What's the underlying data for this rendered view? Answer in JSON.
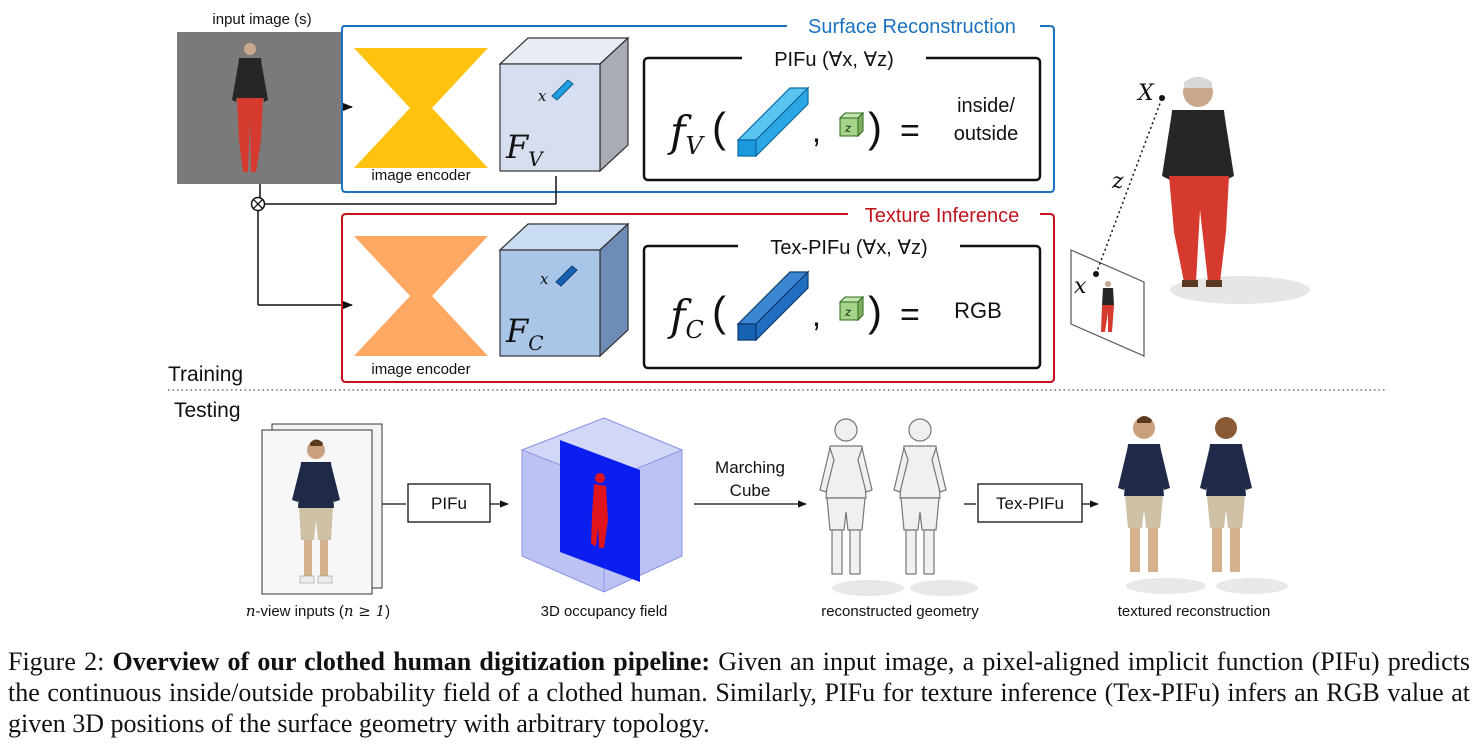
{
  "training": {
    "input_label": "input image (s)",
    "surface_title": "Surface Reconstruction",
    "texture_title": "Texture Inference",
    "encoder_label_top": "image encoder",
    "encoder_label_bottom": "image encoder",
    "pifu_header": "PIFu (∀x, ∀z)",
    "texpifu_header": "Tex-PIFu (∀x, ∀z)",
    "feature_v": "F",
    "feature_v_sub": "V",
    "feature_c": "F",
    "feature_c_sub": "C",
    "f_v": "f",
    "f_v_sub": "V",
    "f_c": "f",
    "f_c_sub": "C",
    "x_small": "x",
    "z_small": "z",
    "inside_outside_1": "inside/",
    "inside_outside_2": "outside",
    "rgb": "RGB",
    "X_big": "X",
    "x_big": "x",
    "z_label": "z",
    "section_training": "Training",
    "section_testing": "Testing",
    "colors": {
      "surface": "#1a72c0",
      "texture": "#c0141c",
      "encoder_top": "#ffc20e",
      "encoder_bottom": "#ffa864"
    }
  },
  "testing": {
    "inputs_label_n": "n",
    "inputs_label_rest": "-view inputs (",
    "inputs_label_cond": "n ≥ 1",
    "inputs_label_close": ")",
    "pifu_box": "PIFu",
    "occupancy_label": "3D occupancy field",
    "marching_1": "Marching",
    "marching_2": "Cube",
    "geometry_label": "reconstructed geometry",
    "texpifu_box": "Tex-PIFu",
    "textured_label": "textured reconstruction"
  },
  "caption": {
    "figure_no": "Figure 2:",
    "title": "Overview of our clothed human digitization pipeline:",
    "body": "Given an input image, a pixel-aligned implicit function (PIFu) predicts the continuous inside/outside probability field of a clothed human. Similarly, PIFu for texture inference (Tex-PIFu) infers an RGB value at given 3D positions of the surface geometry with arbitrary topology."
  }
}
